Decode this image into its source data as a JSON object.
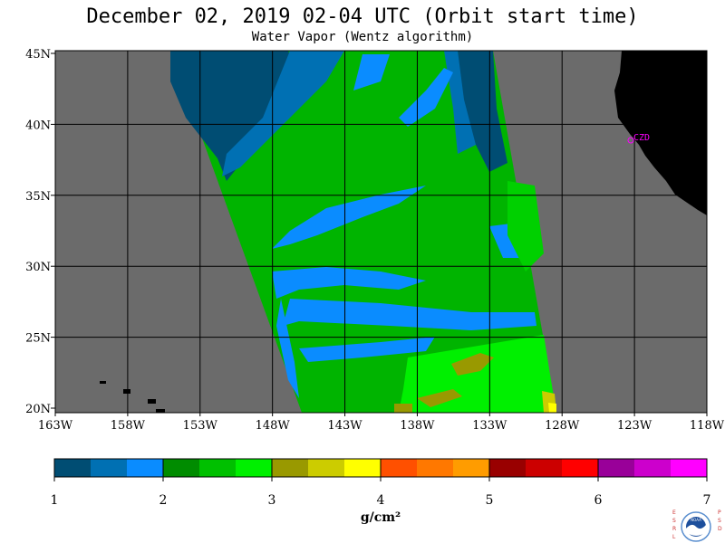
{
  "title": "December 02, 2019  02-04 UTC  (Orbit start time)",
  "subtitle": "Water Vapor (Wentz algorithm)",
  "map": {
    "lat_labels": [
      "45N",
      "40N",
      "35N",
      "30N",
      "25N",
      "20N"
    ],
    "lon_labels": [
      "163W",
      "158W",
      "153W",
      "148W",
      "143W",
      "138W",
      "133W",
      "128W",
      "123W",
      "118W"
    ],
    "station_label": "CZD",
    "colors": {
      "background": "#6b6b6b",
      "land": "#000000",
      "station": "#ff00ff"
    }
  },
  "colorbar": {
    "tick_labels": [
      "1",
      "2",
      "3",
      "4",
      "5",
      "6",
      "7"
    ],
    "unit_label": "g/cm²",
    "colors": [
      "#004d73",
      "#0070b3",
      "#0a8cff",
      "#008c00",
      "#00c000",
      "#00f000",
      "#999900",
      "#cccc00",
      "#ffff00",
      "#ff5000",
      "#ff7800",
      "#ff9c00",
      "#990000",
      "#cc0000",
      "#ff0000",
      "#990099",
      "#cc00cc",
      "#ff00ff"
    ]
  },
  "logo": {
    "left_letters": "ESRL",
    "right_letters": "PSD",
    "center_text": "NOAA"
  }
}
